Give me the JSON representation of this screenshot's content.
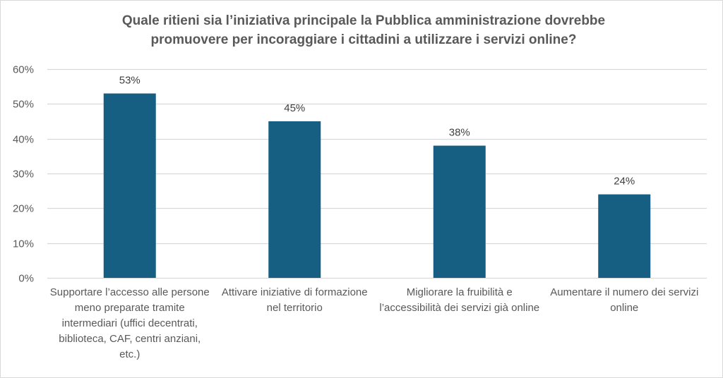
{
  "chart_data": {
    "type": "bar",
    "title_lines": [
      "Quale ritieni sia l’iniziativa principale la Pubblica amministrazione dovrebbe",
      "promuovere per incoraggiare i cittadini a utilizzare i servizi online?"
    ],
    "categories": [
      "Supportare l’accesso alle persone meno preparate tramite intermediari (uffici decentrati, biblioteca, CAF, centri anziani, etc.)",
      "Attivare iniziative di formazione nel territorio",
      "Migliorare la fruibilità e l’accessibilità dei servizi già online",
      "Aumentare il numero dei servizi online"
    ],
    "values": [
      53,
      45,
      38,
      24
    ],
    "data_labels": [
      "53%",
      "45%",
      "38%",
      "24%"
    ],
    "yticks": [
      "0%",
      "10%",
      "20%",
      "30%",
      "40%",
      "50%",
      "60%"
    ],
    "ytick_values": [
      0,
      10,
      20,
      30,
      40,
      50,
      60
    ],
    "ylim": [
      0,
      60
    ],
    "xlabel": "",
    "ylabel": "",
    "grid": true,
    "legend": "none",
    "bar_color": "#175F82",
    "grid_color": "#d9d9d9"
  }
}
